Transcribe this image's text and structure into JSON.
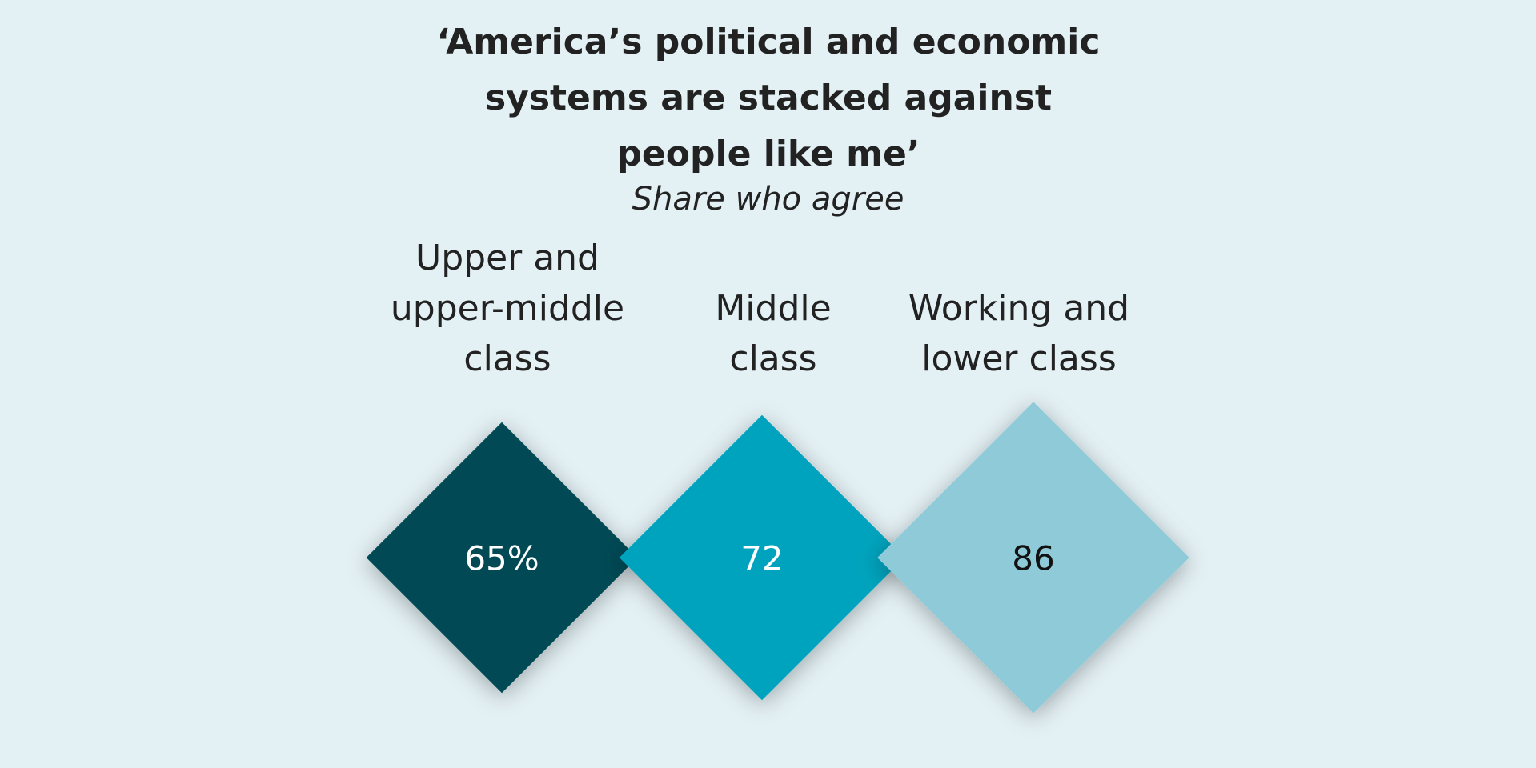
{
  "chart_data": {
    "type": "diamond",
    "title": "‘America’s political and economic systems are stacked against people like me’",
    "subtitle": "Share who agree",
    "categories": [
      "Upper and upper-middle class",
      "Middle class",
      "Working and lower class"
    ],
    "values": [
      65,
      72,
      86
    ],
    "value_labels": [
      "65%",
      "72",
      "86"
    ],
    "colors": [
      "#034a54",
      "#00a3bd",
      "#8fcad9"
    ]
  }
}
